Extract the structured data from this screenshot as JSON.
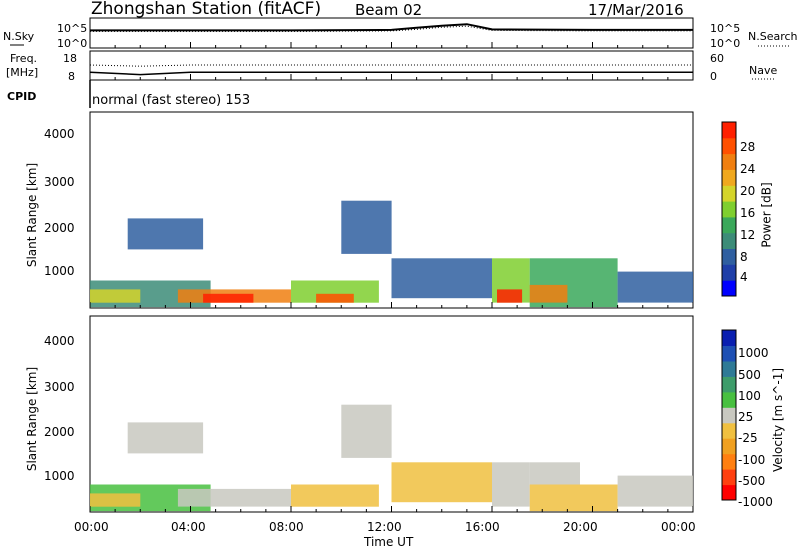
{
  "header": {
    "station": "Zhongshan Station (fitACF)",
    "beam": "Beam 02",
    "date": "17/Mar/2016",
    "cpid_label": "CPID",
    "program": "normal (fast stereo) 153"
  },
  "nsky_panel": {
    "left_label": "N.Sky",
    "right_label": "N.Search",
    "ticks_left": [
      "10^5",
      "10^0"
    ],
    "ticks_right": [
      "10^5",
      "10^0"
    ]
  },
  "freq_panel": {
    "left_label_1": "Freq.",
    "left_label_2": "[MHz]",
    "right_label": "Nave",
    "ticks_left": [
      "18",
      "8"
    ],
    "ticks_right": [
      "60",
      "0"
    ]
  },
  "power_panel": {
    "ylabel": "Slant Range [km]",
    "yticks": [
      "4000",
      "3000",
      "2000",
      "1000"
    ],
    "colorbar_label": "Power [dB]",
    "colorbar_ticks": [
      "28",
      "24",
      "20",
      "16",
      "12",
      "8",
      "4"
    ],
    "colors": [
      "#0000ff",
      "#1f3fa8",
      "#2f5fa0",
      "#3c8c78",
      "#3aa85a",
      "#7fcf2f",
      "#d4d42a",
      "#f0a81e",
      "#f07f10",
      "#ff5000",
      "#ff2000"
    ]
  },
  "velocity_panel": {
    "ylabel": "Slant Range [km]",
    "yticks": [
      "4000",
      "3000",
      "2000",
      "1000"
    ],
    "colorbar_label": "Velocity [m s^-1]",
    "colorbar_ticks": [
      "1000",
      "500",
      "100",
      "25",
      "-25",
      "-100",
      "-500",
      "-1000"
    ],
    "colors": [
      "#0a1fb0",
      "#1e50b4",
      "#2e7a96",
      "#3d9c6a",
      "#48c040",
      "#c8c8c0",
      "#f0c040",
      "#f0a020",
      "#ff7f10",
      "#ff4010",
      "#ff0000"
    ]
  },
  "x_axis": {
    "label": "Time UT",
    "ticks": [
      "00:00",
      "04:00",
      "08:00",
      "12:00",
      "16:00",
      "20:00",
      "00:00"
    ]
  },
  "chart_data": [
    {
      "type": "line",
      "title": "N.Sky / N.Search",
      "x": [
        "00:00",
        "04:00",
        "08:00",
        "12:00",
        "13:00",
        "14:00",
        "15:00",
        "16:00",
        "20:00",
        "24:00"
      ],
      "series": [
        {
          "name": "N.Sky",
          "values": [
            3.0,
            3.0,
            3.0,
            3.1,
            3.5,
            3.9,
            4.2,
            3.2,
            3.1,
            3.1
          ]
        },
        {
          "name": "N.Search",
          "values": [
            2.8,
            2.8,
            2.8,
            2.9,
            3.2,
            3.6,
            3.8,
            3.0,
            2.9,
            2.9
          ]
        }
      ],
      "ylim": [
        0,
        5
      ]
    },
    {
      "type": "line",
      "title": "Freq / Nave",
      "x": [
        "00:00",
        "02:00",
        "04:00",
        "06:00",
        "12:00",
        "24:00"
      ],
      "series": [
        {
          "name": "Freq",
          "values": [
            10,
            9,
            10,
            10,
            10,
            10
          ]
        },
        {
          "name": "Nave",
          "values": [
            30,
            27,
            30,
            30,
            30,
            30
          ]
        }
      ],
      "ylim": [
        8,
        18
      ]
    },
    {
      "type": "heatmap",
      "title": "Power [dB]",
      "xlabel": "Time UT",
      "ylabel": "Slant Range [km]",
      "xlim": [
        0,
        24
      ],
      "ylim": [
        180,
        4600
      ],
      "zlim": [
        0,
        30
      ],
      "regions": [
        {
          "t0": 0.0,
          "t1": 4.8,
          "r0": 200,
          "r1": 800,
          "value": 9
        },
        {
          "t0": 0.0,
          "t1": 2.0,
          "r0": 300,
          "r1": 600,
          "value": 18
        },
        {
          "t0": 1.5,
          "t1": 4.5,
          "r0": 1500,
          "r1": 2200,
          "value": 7
        },
        {
          "t0": 3.5,
          "t1": 8.0,
          "r0": 300,
          "r1": 600,
          "value": 22
        },
        {
          "t0": 4.5,
          "t1": 6.5,
          "r0": 300,
          "r1": 500,
          "value": 28
        },
        {
          "t0": 8.0,
          "t1": 11.5,
          "r0": 300,
          "r1": 800,
          "value": 16
        },
        {
          "t0": 9.0,
          "t1": 10.5,
          "r0": 300,
          "r1": 500,
          "value": 26
        },
        {
          "t0": 10.0,
          "t1": 12.0,
          "r0": 1400,
          "r1": 2600,
          "value": 6
        },
        {
          "t0": 12.0,
          "t1": 16.0,
          "r0": 400,
          "r1": 1300,
          "value": 8
        },
        {
          "t0": 16.0,
          "t1": 17.5,
          "r0": 300,
          "r1": 1300,
          "value": 14
        },
        {
          "t0": 16.2,
          "t1": 17.2,
          "r0": 300,
          "r1": 600,
          "value": 28
        },
        {
          "t0": 17.5,
          "t1": 21.0,
          "r0": 200,
          "r1": 1300,
          "value": 12
        },
        {
          "t0": 17.5,
          "t1": 19.0,
          "r0": 300,
          "r1": 700,
          "value": 22
        },
        {
          "t0": 21.0,
          "t1": 24.0,
          "r0": 300,
          "r1": 1000,
          "value": 7
        }
      ]
    },
    {
      "type": "heatmap",
      "title": "Velocity [m s^-1]",
      "xlabel": "Time UT",
      "ylabel": "Slant Range [km]",
      "xlim": [
        0,
        24
      ],
      "ylim": [
        180,
        4600
      ],
      "zlim": [
        -1000,
        1000
      ],
      "regions": [
        {
          "t0": 0.0,
          "t1": 4.8,
          "r0": 200,
          "r1": 800,
          "value": 120
        },
        {
          "t0": 0.0,
          "t1": 2.0,
          "r0": 300,
          "r1": 600,
          "value": -150
        },
        {
          "t0": 1.5,
          "t1": 4.5,
          "r0": 1500,
          "r1": 2200,
          "value": -60
        },
        {
          "t0": 3.5,
          "t1": 8.0,
          "r0": 300,
          "r1": 700,
          "value": 90
        },
        {
          "t0": 8.0,
          "t1": 11.5,
          "r0": 300,
          "r1": 800,
          "value": -200
        },
        {
          "t0": 10.0,
          "t1": 12.0,
          "r0": 1400,
          "r1": 2600,
          "value": 0
        },
        {
          "t0": 12.0,
          "t1": 16.0,
          "r0": 400,
          "r1": 1300,
          "value": -120
        },
        {
          "t0": 16.0,
          "t1": 17.5,
          "r0": 300,
          "r1": 1300,
          "value": 0
        },
        {
          "t0": 17.5,
          "t1": 21.0,
          "r0": 200,
          "r1": 800,
          "value": -250
        },
        {
          "t0": 17.5,
          "t1": 19.5,
          "r0": 800,
          "r1": 1300,
          "value": 0
        },
        {
          "t0": 21.0,
          "t1": 24.0,
          "r0": 300,
          "r1": 1000,
          "value": -80
        }
      ]
    }
  ]
}
